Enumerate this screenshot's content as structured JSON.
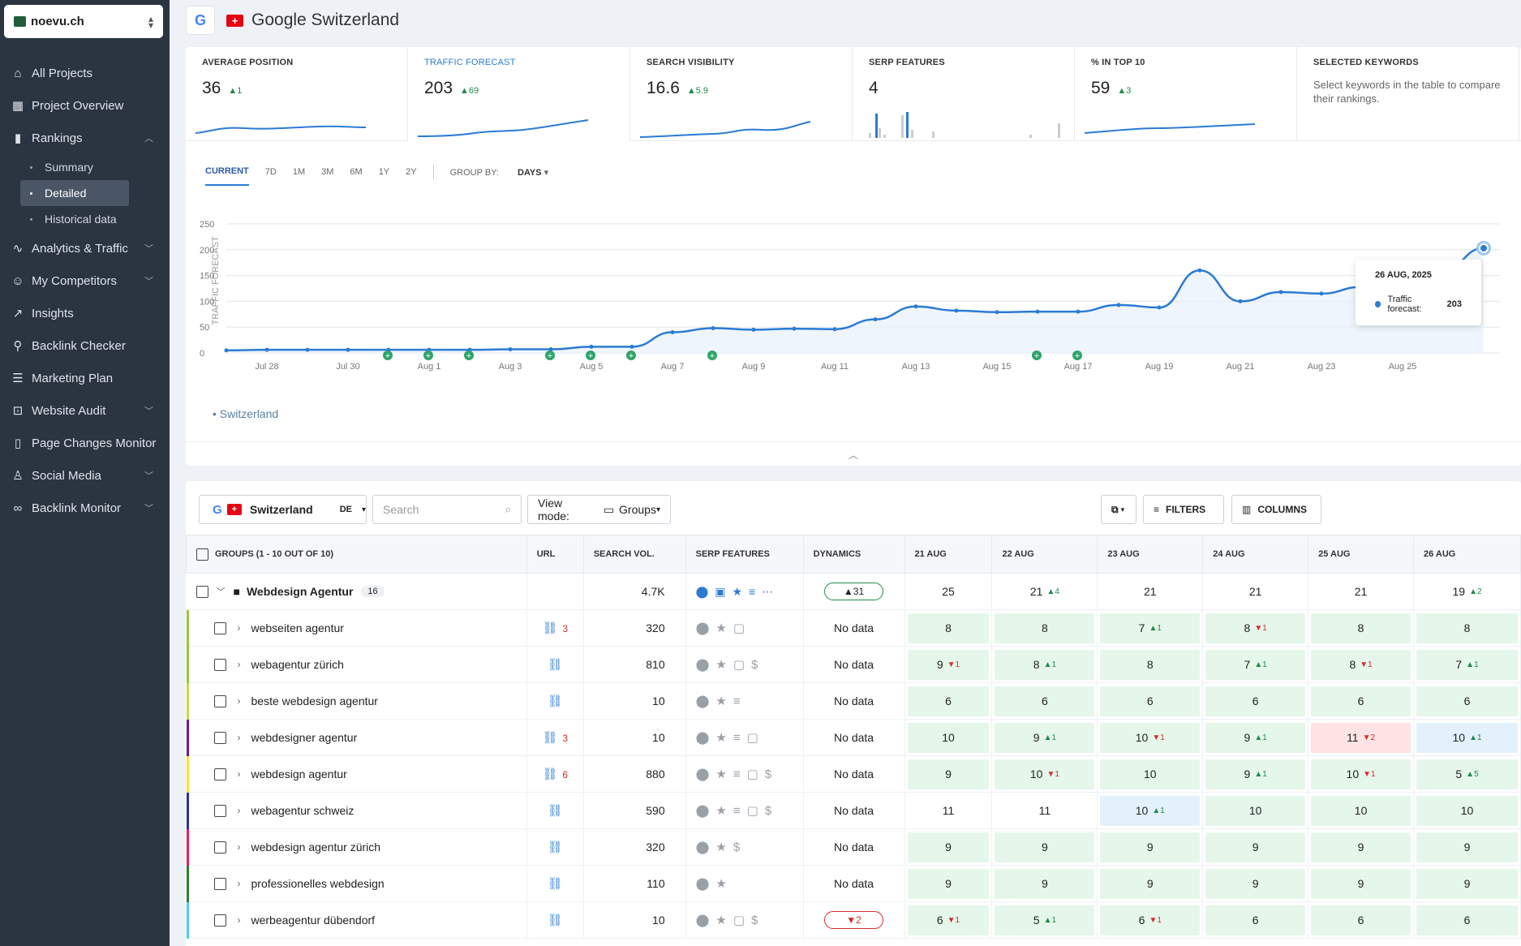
{
  "project": {
    "name": "noevu.ch"
  },
  "nav": {
    "items": [
      {
        "label": "All Projects",
        "icon": "home-icon"
      },
      {
        "label": "Project Overview",
        "icon": "grid-icon"
      },
      {
        "label": "Rankings",
        "icon": "bar-chart-icon"
      },
      {
        "label": "Analytics & Traffic",
        "icon": "pulse-icon"
      },
      {
        "label": "My Competitors",
        "icon": "users-icon"
      },
      {
        "label": "Insights",
        "icon": "trend-icon"
      },
      {
        "label": "Backlink Checker",
        "icon": "link-icon"
      },
      {
        "label": "Marketing Plan",
        "icon": "checklist-icon"
      },
      {
        "label": "Website Audit",
        "icon": "audit-icon"
      },
      {
        "label": "Page Changes Monitor",
        "icon": "book-icon"
      },
      {
        "label": "Social Media",
        "icon": "thumbs-up-icon"
      },
      {
        "label": "Backlink Monitor",
        "icon": "chain-icon"
      }
    ],
    "rankings_sub": [
      "Summary",
      "Detailed",
      "Historical data"
    ]
  },
  "header": {
    "title": "Google Switzerland"
  },
  "metrics": [
    {
      "label": "AVERAGE POSITION",
      "value": "36",
      "delta": "1"
    },
    {
      "label": "TRAFFIC FORECAST",
      "value": "203",
      "delta": "69"
    },
    {
      "label": "SEARCH VISIBILITY",
      "value": "16.6",
      "delta": "5.9"
    },
    {
      "label": "SERP FEATURES",
      "value": "4",
      "delta": ""
    },
    {
      "label": "% IN TOP 10",
      "value": "59",
      "delta": "3"
    },
    {
      "label": "SELECTED KEYWORDS",
      "value": "",
      "delta": "",
      "desc": "Select keywords in the table to compare their rankings."
    }
  ],
  "ranges": {
    "current": "CURRENT",
    "options": [
      "7D",
      "1M",
      "3M",
      "6M",
      "1Y",
      "2Y"
    ],
    "group_by_label": "GROUP BY:",
    "group_by_value": "DAYS"
  },
  "chart_data": {
    "type": "line",
    "ylabel": "TRAFFIC FORECAST",
    "ylim": [
      0,
      250
    ],
    "yticks": [
      0,
      50,
      100,
      150,
      200,
      250
    ],
    "xtick_labels": [
      "Jul 28",
      "Jul 30",
      "Aug 1",
      "Aug 3",
      "Aug 5",
      "Aug 7",
      "Aug 9",
      "Aug 11",
      "Aug 13",
      "Aug 15",
      "Aug 17",
      "Aug 19",
      "Aug 21",
      "Aug 23",
      "Aug 25"
    ],
    "series": [
      {
        "name": "Switzerland",
        "values": [
          5,
          6,
          6,
          6,
          6,
          6,
          6,
          7,
          7,
          12,
          12,
          40,
          48,
          45,
          47,
          46,
          65,
          90,
          82,
          79,
          80,
          80,
          93,
          88,
          160,
          100,
          118,
          115,
          128,
          155,
          160,
          203
        ]
      }
    ],
    "x_start": "Jul 27",
    "annotations_days": [
      "Jul 31",
      "Aug 1",
      "Aug 2",
      "Aug 4",
      "Aug 5",
      "Aug 6",
      "Aug 8",
      "Aug 16",
      "Aug 17"
    ],
    "tooltip": {
      "date": "26 AUG, 2025",
      "label": "Traffic forecast:",
      "value": "203"
    },
    "legend": "Switzerland"
  },
  "toolbar": {
    "location": "Switzerland",
    "lang": "DE",
    "search_placeholder": "Search",
    "view_mode_label": "View mode:",
    "view_mode_value": "Groups",
    "filters": "FILTERS",
    "columns": "COLUMNS"
  },
  "table": {
    "headers": {
      "groups": "GROUPS (1 - 10 OUT OF 10)",
      "url": "URL",
      "volume": "SEARCH VOL.",
      "serp": "SERP FEATURES",
      "dynamics": "DYNAMICS",
      "dates": [
        "21 AUG",
        "22 AUG",
        "23 AUG",
        "24 AUG",
        "25 AUG",
        "26 AUG"
      ]
    },
    "group": {
      "name": "Webdesign Agentur",
      "count": "16",
      "volume": "4.7K",
      "dynamics": "31",
      "ranks": [
        {
          "v": "25",
          "d": ""
        },
        {
          "v": "21",
          "d": "4",
          "dir": "up"
        },
        {
          "v": "21",
          "d": ""
        },
        {
          "v": "21",
          "d": ""
        },
        {
          "v": "21",
          "d": ""
        },
        {
          "v": "19",
          "d": "2",
          "dir": "up"
        }
      ]
    },
    "rows": [
      {
        "kw": "webseiten agentur",
        "color": "#9bc53d",
        "links": "3",
        "volume": "320",
        "serp": "⬤★▢",
        "dyn": "No data",
        "ranks": [
          {
            "v": "8",
            "c": "g"
          },
          {
            "v": "8",
            "c": "g"
          },
          {
            "v": "7",
            "d": "1",
            "dir": "up",
            "c": "g"
          },
          {
            "v": "8",
            "d": "1",
            "dir": "dn",
            "c": "g"
          },
          {
            "v": "8",
            "c": "g"
          },
          {
            "v": "8",
            "c": "g"
          }
        ]
      },
      {
        "kw": "webagentur zürich",
        "color": "#9bc53d",
        "links": "",
        "volume": "810",
        "serp": "⬤★▢$",
        "dyn": "No data",
        "ranks": [
          {
            "v": "9",
            "d": "1",
            "dir": "dn",
            "c": "g"
          },
          {
            "v": "8",
            "d": "1",
            "dir": "up",
            "c": "g"
          },
          {
            "v": "8",
            "c": "g"
          },
          {
            "v": "7",
            "d": "1",
            "dir": "up",
            "c": "g"
          },
          {
            "v": "8",
            "d": "1",
            "dir": "dn",
            "c": "g"
          },
          {
            "v": "7",
            "d": "1",
            "dir": "up",
            "c": "g"
          }
        ]
      },
      {
        "kw": "beste webdesign agentur",
        "color": "#c8d84a",
        "links": "",
        "volume": "10",
        "serp": "⬤★≡",
        "dyn": "No data",
        "ranks": [
          {
            "v": "6",
            "c": "g"
          },
          {
            "v": "6",
            "c": "g"
          },
          {
            "v": "6",
            "c": "g"
          },
          {
            "v": "6",
            "c": "g"
          },
          {
            "v": "6",
            "c": "g"
          },
          {
            "v": "6",
            "c": "g"
          }
        ]
      },
      {
        "kw": "webdesigner agentur",
        "color": "#6a1b9a",
        "links": "3",
        "volume": "10",
        "serp": "⬤★≡▢",
        "dyn": "No data",
        "ranks": [
          {
            "v": "10",
            "c": "g"
          },
          {
            "v": "9",
            "d": "1",
            "dir": "up",
            "c": "g"
          },
          {
            "v": "10",
            "d": "1",
            "dir": "dn",
            "c": "g"
          },
          {
            "v": "9",
            "d": "1",
            "dir": "up",
            "c": "g"
          },
          {
            "v": "11",
            "d": "2",
            "dir": "dn",
            "c": "r"
          },
          {
            "v": "10",
            "d": "1",
            "dir": "up",
            "c": "b"
          }
        ]
      },
      {
        "kw": "webdesign agentur",
        "color": "#f2e33c",
        "links": "6",
        "volume": "880",
        "serp": "⬤★≡▢$",
        "dyn": "No data",
        "ranks": [
          {
            "v": "9",
            "c": "g"
          },
          {
            "v": "10",
            "d": "1",
            "dir": "dn",
            "c": "g"
          },
          {
            "v": "10",
            "c": "g"
          },
          {
            "v": "9",
            "d": "1",
            "dir": "up",
            "c": "g"
          },
          {
            "v": "10",
            "d": "1",
            "dir": "dn",
            "c": "g"
          },
          {
            "v": "5",
            "d": "5",
            "dir": "up",
            "c": "g"
          }
        ]
      },
      {
        "kw": "webagentur schweiz",
        "color": "#283593",
        "links": "",
        "volume": "590",
        "serp": "⬤★≡▢$",
        "dyn": "No data",
        "ranks": [
          {
            "v": "11",
            "c": ""
          },
          {
            "v": "11",
            "c": ""
          },
          {
            "v": "10",
            "d": "1",
            "dir": "up",
            "c": "b"
          },
          {
            "v": "10",
            "c": "g"
          },
          {
            "v": "10",
            "c": "g"
          },
          {
            "v": "10",
            "c": "g"
          }
        ]
      },
      {
        "kw": "webdesign agentur zürich",
        "color": "#e91e63",
        "links": "",
        "volume": "320",
        "serp": "⬤★$",
        "dyn": "No data",
        "ranks": [
          {
            "v": "9",
            "c": "g"
          },
          {
            "v": "9",
            "c": "g"
          },
          {
            "v": "9",
            "c": "g"
          },
          {
            "v": "9",
            "c": "g"
          },
          {
            "v": "9",
            "c": "g"
          },
          {
            "v": "9",
            "c": "g"
          }
        ]
      },
      {
        "kw": "professionelles webdesign",
        "color": "#2e7d32",
        "links": "",
        "volume": "110",
        "serp": "⬤★",
        "dyn": "No data",
        "ranks": [
          {
            "v": "9",
            "c": "g"
          },
          {
            "v": "9",
            "c": "g"
          },
          {
            "v": "9",
            "c": "g"
          },
          {
            "v": "9",
            "c": "g"
          },
          {
            "v": "9",
            "c": "g"
          },
          {
            "v": "9",
            "c": "g"
          }
        ]
      },
      {
        "kw": "werbeagentur dübendorf",
        "color": "#4dd0e1",
        "links": "",
        "volume": "10",
        "serp": "⬤★▢$",
        "dyn": "2",
        "dynbad": true,
        "ranks": [
          {
            "v": "6",
            "d": "1",
            "dir": "dn",
            "c": "g"
          },
          {
            "v": "5",
            "d": "1",
            "dir": "up",
            "c": "g"
          },
          {
            "v": "6",
            "d": "1",
            "dir": "dn",
            "c": "g"
          },
          {
            "v": "6",
            "c": "g"
          },
          {
            "v": "6",
            "c": "g"
          },
          {
            "v": "6",
            "c": "g"
          }
        ]
      }
    ]
  }
}
